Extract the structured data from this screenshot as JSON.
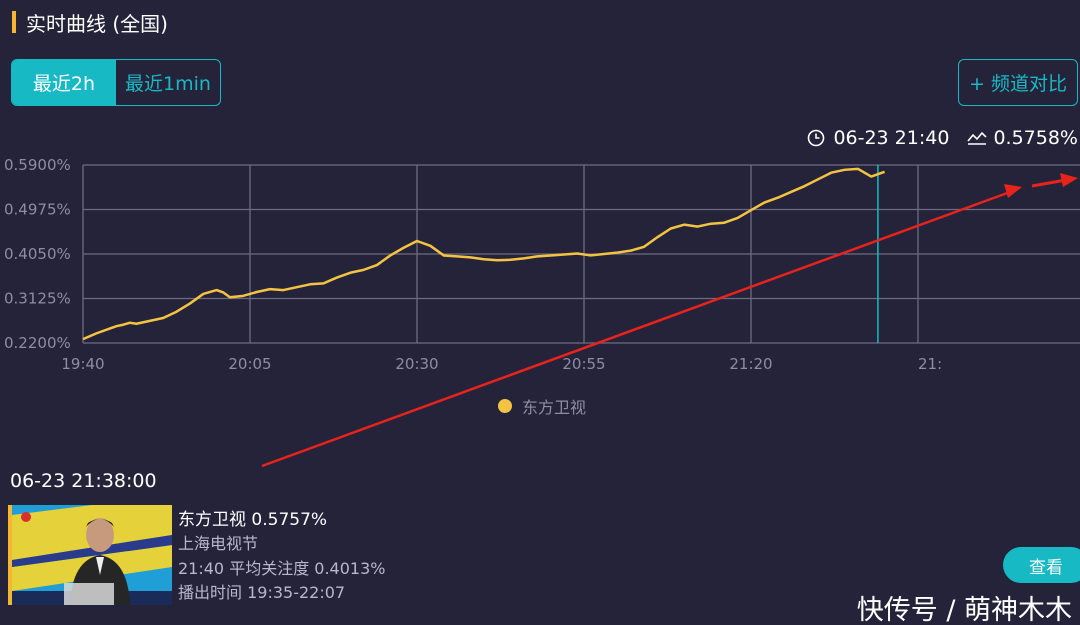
{
  "header": {
    "title": "实时曲线 (全国)"
  },
  "range_tabs": [
    {
      "label": "最近2h",
      "active": true
    },
    {
      "label": "最近1min",
      "active": false
    }
  ],
  "compare_button": {
    "label": "+ 频道对比"
  },
  "readout": {
    "time": "06-23 21:40",
    "value": "0.5758%"
  },
  "colors": {
    "accent": "#17b9c4",
    "line": "#f5c342",
    "bar": "#f5b731",
    "annotation": "#e8231b"
  },
  "chart_data": {
    "type": "line",
    "title": "",
    "xlabel": "",
    "ylabel": "",
    "y_ticks": [
      "0.5900%",
      "0.4975%",
      "0.4050%",
      "0.3125%",
      "0.2200%"
    ],
    "ylim": [
      0.22,
      0.59
    ],
    "x_ticks": [
      "19:40",
      "20:05",
      "20:30",
      "20:55",
      "21:20",
      "21:"
    ],
    "grid": true,
    "legend_position": "bottom-center",
    "series": [
      {
        "name": "东方卫视",
        "x_minutes_from_1940": [
          0,
          2,
          4,
          5,
          6,
          7,
          8,
          10,
          12,
          14,
          16,
          18,
          20,
          21,
          22,
          24,
          26,
          28,
          30,
          32,
          34,
          36,
          38,
          40,
          42,
          44,
          46,
          48,
          50,
          52,
          54,
          56,
          58,
          60,
          62,
          64,
          66,
          68,
          70,
          72,
          74,
          76,
          78,
          80,
          82,
          84,
          86,
          88,
          90,
          92,
          94,
          96,
          98,
          100,
          102,
          104,
          106,
          108,
          110,
          112,
          114,
          116,
          118,
          120
        ],
        "values": [
          0.228,
          0.24,
          0.25,
          0.255,
          0.258,
          0.262,
          0.26,
          0.266,
          0.272,
          0.285,
          0.302,
          0.322,
          0.33,
          0.325,
          0.315,
          0.318,
          0.326,
          0.332,
          0.33,
          0.336,
          0.342,
          0.344,
          0.356,
          0.366,
          0.372,
          0.382,
          0.402,
          0.418,
          0.432,
          0.422,
          0.402,
          0.4,
          0.398,
          0.394,
          0.392,
          0.393,
          0.396,
          0.4,
          0.402,
          0.404,
          0.406,
          0.402,
          0.405,
          0.408,
          0.412,
          0.42,
          0.44,
          0.458,
          0.466,
          0.462,
          0.468,
          0.47,
          0.48,
          0.496,
          0.512,
          0.522,
          0.534,
          0.546,
          0.56,
          0.574,
          0.58,
          0.582,
          0.566,
          0.5758
        ]
      }
    ]
  },
  "detail": {
    "timestamp": "06-23 21:38:00",
    "channel_value": "东方卫视 0.5757%",
    "program": "上海电视节",
    "avg_attention": "21:40 平均关注度 0.4013%",
    "air_time": "播出时间 19:35-22:07",
    "view_label": "查看"
  },
  "watermark": "快传号 / 萌神木木"
}
